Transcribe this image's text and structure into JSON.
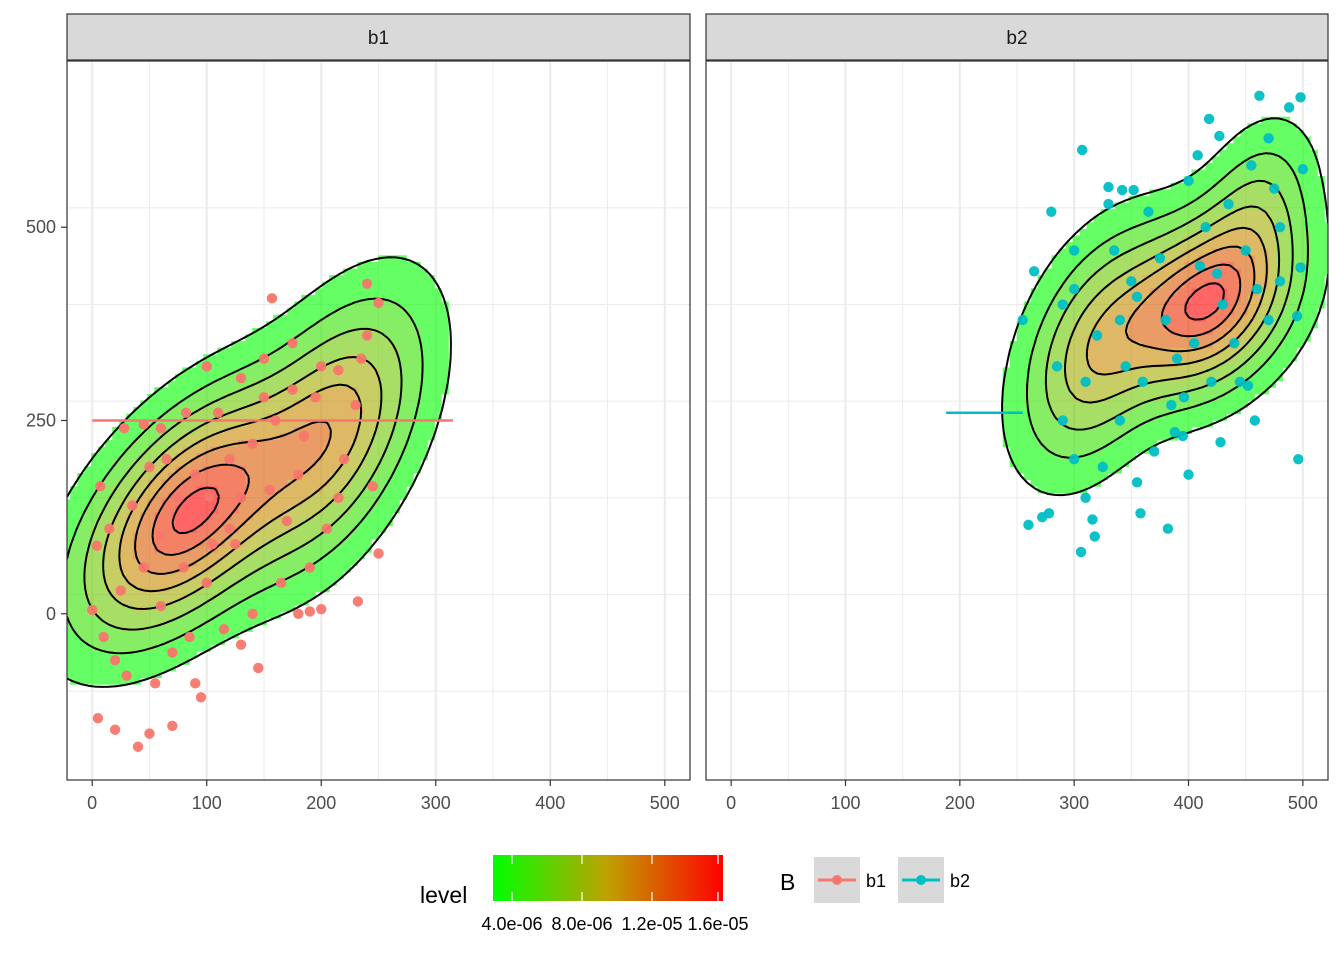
{
  "chart_data": {
    "type": "scatter",
    "facet_variable": "B",
    "panels": [
      {
        "name": "b1",
        "color": "#F8766D",
        "segment": {
          "x": [
            0,
            315
          ],
          "y": 250
        },
        "density_peaks": [
          {
            "x": 85,
            "y": 130,
            "sx": 58,
            "sy": 95,
            "rho": 0.55,
            "w": 0.62
          },
          {
            "x": 210,
            "y": 235,
            "sx": 48,
            "sy": 105,
            "rho": 0.5,
            "w": 0.38
          }
        ],
        "points": [
          [
            0,
            5
          ],
          [
            5,
            -135
          ],
          [
            4,
            88
          ],
          [
            7,
            165
          ],
          [
            20,
            -150
          ],
          [
            28,
            240
          ],
          [
            40,
            -172
          ],
          [
            45,
            245
          ],
          [
            50,
            -155
          ],
          [
            60,
            10
          ],
          [
            70,
            -145
          ],
          [
            82,
            260
          ],
          [
            95,
            -108
          ],
          [
            102,
            152
          ],
          [
            130,
            305
          ],
          [
            150,
            330
          ],
          [
            157,
            408
          ],
          [
            175,
            290
          ],
          [
            190,
            3
          ],
          [
            200,
            6
          ],
          [
            232,
            16
          ],
          [
            240,
            427
          ],
          [
            250,
            402
          ],
          [
            250,
            78
          ],
          [
            245,
            165
          ],
          [
            215,
            315
          ],
          [
            120,
            200
          ],
          [
            80,
            60
          ],
          [
            60,
            100
          ],
          [
            100,
            40
          ],
          [
            140,
            220
          ],
          [
            180,
            180
          ],
          [
            30,
            -80
          ],
          [
            10,
            -30
          ],
          [
            110,
            260
          ],
          [
            160,
            250
          ],
          [
            200,
            320
          ],
          [
            220,
            200
          ],
          [
            70,
            -50
          ],
          [
            125,
            90
          ],
          [
            50,
            190
          ],
          [
            90,
            180
          ],
          [
            170,
            120
          ],
          [
            140,
            0
          ],
          [
            190,
            60
          ],
          [
            230,
            270
          ],
          [
            35,
            140
          ],
          [
            65,
            200
          ],
          [
            115,
            -20
          ],
          [
            155,
            160
          ],
          [
            205,
            110
          ],
          [
            25,
            30
          ],
          [
            55,
            -90
          ],
          [
            100,
            320
          ],
          [
            130,
            150
          ],
          [
            175,
            350
          ],
          [
            240,
            360
          ],
          [
            15,
            110
          ],
          [
            145,
            -70
          ],
          [
            185,
            230
          ],
          [
            85,
            -30
          ],
          [
            120,
            110
          ],
          [
            215,
            150
          ],
          [
            45,
            60
          ],
          [
            165,
            40
          ],
          [
            75,
            150
          ],
          [
            105,
            90
          ],
          [
            195,
            280
          ],
          [
            235,
            330
          ],
          [
            20,
            -60
          ],
          [
            60,
            240
          ],
          [
            150,
            280
          ],
          [
            90,
            -90
          ],
          [
            130,
            -40
          ],
          [
            180,
            0
          ]
        ]
      },
      {
        "name": "b2",
        "color": "#00BFC4",
        "segment": {
          "x": [
            188,
            255
          ],
          "y": 260
        },
        "density_peaks": [
          {
            "x": 415,
            "y": 400,
            "sx": 45,
            "sy": 70,
            "rho": 0.3,
            "w": 0.55
          },
          {
            "x": 320,
            "y": 340,
            "sx": 40,
            "sy": 90,
            "rho": 0.4,
            "w": 0.3
          },
          {
            "x": 460,
            "y": 520,
            "sx": 30,
            "sy": 70,
            "rho": 0.3,
            "w": 0.15
          }
        ],
        "points": [
          [
            462,
            670
          ],
          [
            498,
            668
          ],
          [
            488,
            655
          ],
          [
            418,
            640
          ],
          [
            427,
            618
          ],
          [
            307,
            600
          ],
          [
            408,
            593
          ],
          [
            470,
            615
          ],
          [
            500,
            575
          ],
          [
            342,
            548
          ],
          [
            330,
            552
          ],
          [
            352,
            548
          ],
          [
            280,
            520
          ],
          [
            265,
            443
          ],
          [
            255,
            380
          ],
          [
            260,
            115
          ],
          [
            272,
            125
          ],
          [
            278,
            130
          ],
          [
            306,
            80
          ],
          [
            316,
            122
          ],
          [
            318,
            100
          ],
          [
            355,
            170
          ],
          [
            358,
            130
          ],
          [
            382,
            110
          ],
          [
            388,
            235
          ],
          [
            396,
            280
          ],
          [
            428,
            222
          ],
          [
            452,
            295
          ],
          [
            458,
            250
          ],
          [
            496,
            200
          ],
          [
            498,
            448
          ],
          [
            495,
            385
          ],
          [
            330,
            530
          ],
          [
            300,
            470
          ],
          [
            290,
            400
          ],
          [
            310,
            300
          ],
          [
            340,
            250
          ],
          [
            370,
            210
          ],
          [
            400,
            180
          ],
          [
            420,
            300
          ],
          [
            440,
            350
          ],
          [
            460,
            420
          ],
          [
            480,
            500
          ],
          [
            350,
            430
          ],
          [
            380,
            380
          ],
          [
            410,
            450
          ],
          [
            300,
            200
          ],
          [
            320,
            360
          ],
          [
            360,
            300
          ],
          [
            390,
            330
          ],
          [
            430,
            400
          ],
          [
            450,
            470
          ],
          [
            470,
            380
          ],
          [
            285,
            320
          ],
          [
            340,
            380
          ],
          [
            375,
            460
          ],
          [
            405,
            350
          ],
          [
            435,
            530
          ],
          [
            290,
            250
          ],
          [
            325,
            190
          ],
          [
            355,
            410
          ],
          [
            385,
            270
          ],
          [
            415,
            500
          ],
          [
            445,
            300
          ],
          [
            475,
            550
          ],
          [
            300,
            420
          ],
          [
            365,
            520
          ],
          [
            395,
            230
          ],
          [
            425,
            440
          ],
          [
            455,
            580
          ],
          [
            310,
            150
          ],
          [
            345,
            320
          ],
          [
            335,
            470
          ],
          [
            400,
            560
          ],
          [
            480,
            430
          ]
        ]
      }
    ],
    "x_ticks": [
      0,
      100,
      200,
      300,
      400,
      500
    ],
    "y_ticks": [
      0,
      250,
      500
    ],
    "xlim": [
      -22,
      522
    ],
    "ylim": [
      -215,
      715
    ],
    "grid": true,
    "contour_levels": [
      0.06,
      0.16,
      0.28,
      0.42,
      0.56,
      0.7,
      0.84,
      0.955
    ],
    "fill_alpha": 0.35,
    "xlabel": "",
    "ylabel": "",
    "legend": {
      "level": {
        "title": "level",
        "labels": [
          "4.0e-06",
          "8.0e-06",
          "1.2e-05",
          "1.6e-05"
        ],
        "colors": [
          "#00FF00",
          "#FF0000"
        ]
      },
      "B": {
        "title": "B",
        "entries": [
          {
            "label": "b1",
            "color": "#F8766D"
          },
          {
            "label": "b2",
            "color": "#00BFC4"
          }
        ]
      },
      "position": "bottom"
    }
  }
}
